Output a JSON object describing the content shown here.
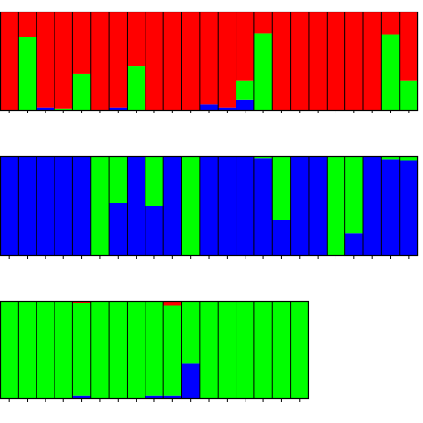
{
  "colors": {
    "red": "#ff0000",
    "green": "#00ff00",
    "blue": "#0000ff",
    "outline": "#000000"
  },
  "chart_data": [
    {
      "type": "bar",
      "stacked": true,
      "title": "",
      "xlabel": "",
      "ylabel": "",
      "ylim": [
        0,
        1
      ],
      "grid": false,
      "series_colors": [
        "#ff0000",
        "#00ff00",
        "#0000ff"
      ],
      "bars": [
        [
          1.0,
          0.0,
          0.0
        ],
        [
          0.26,
          0.74,
          0.0
        ],
        [
          0.97,
          0.0,
          0.03
        ],
        [
          0.98,
          0.02,
          0.0
        ],
        [
          0.63,
          0.37,
          0.0
        ],
        [
          1.0,
          0.0,
          0.0
        ],
        [
          0.97,
          0.0,
          0.03
        ],
        [
          0.55,
          0.45,
          0.0
        ],
        [
          1.0,
          0.0,
          0.0
        ],
        [
          1.0,
          0.0,
          0.0
        ],
        [
          1.0,
          0.0,
          0.0
        ],
        [
          0.94,
          0.0,
          0.06
        ],
        [
          0.97,
          0.0,
          0.03
        ],
        [
          0.7,
          0.19,
          0.11
        ],
        [
          0.22,
          0.78,
          0.0
        ],
        [
          1.0,
          0.0,
          0.0
        ],
        [
          1.0,
          0.0,
          0.0
        ],
        [
          1.0,
          0.0,
          0.0
        ],
        [
          1.0,
          0.0,
          0.0
        ],
        [
          1.0,
          0.0,
          0.0
        ],
        [
          1.0,
          0.0,
          0.0
        ],
        [
          0.23,
          0.77,
          0.0
        ],
        [
          0.7,
          0.3,
          0.0
        ]
      ]
    },
    {
      "type": "bar",
      "stacked": true,
      "title": "",
      "xlabel": "",
      "ylabel": "",
      "ylim": [
        0,
        1
      ],
      "grid": false,
      "series_colors": [
        "#ff0000",
        "#00ff00",
        "#0000ff"
      ],
      "bars": [
        [
          0.0,
          0.0,
          1.0
        ],
        [
          0.0,
          0.0,
          1.0
        ],
        [
          0.0,
          0.0,
          1.0
        ],
        [
          0.0,
          0.0,
          1.0
        ],
        [
          0.0,
          0.0,
          1.0
        ],
        [
          0.0,
          1.0,
          0.0
        ],
        [
          0.0,
          0.47,
          0.53
        ],
        [
          0.0,
          0.0,
          1.0
        ],
        [
          0.0,
          0.5,
          0.5
        ],
        [
          0.0,
          0.0,
          1.0
        ],
        [
          0.0,
          1.0,
          0.0
        ],
        [
          0.0,
          0.0,
          1.0
        ],
        [
          0.0,
          0.0,
          1.0
        ],
        [
          0.0,
          0.0,
          1.0
        ],
        [
          0.0,
          0.02,
          0.98
        ],
        [
          0.0,
          0.64,
          0.36
        ],
        [
          0.0,
          0.0,
          1.0
        ],
        [
          0.0,
          0.0,
          1.0
        ],
        [
          0.0,
          1.0,
          0.0
        ],
        [
          0.0,
          0.77,
          0.23
        ],
        [
          0.0,
          0.0,
          1.0
        ],
        [
          0.0,
          0.03,
          0.97
        ],
        [
          0.0,
          0.04,
          0.96
        ]
      ]
    },
    {
      "type": "bar",
      "stacked": true,
      "title": "",
      "xlabel": "",
      "ylabel": "",
      "ylim": [
        0,
        1
      ],
      "grid": false,
      "series_colors": [
        "#ff0000",
        "#00ff00",
        "#0000ff"
      ],
      "bars": [
        [
          0.0,
          1.0,
          0.0
        ],
        [
          0.0,
          1.0,
          0.0
        ],
        [
          0.0,
          1.0,
          0.0
        ],
        [
          0.0,
          1.0,
          0.0
        ],
        [
          0.02,
          0.95,
          0.03
        ],
        [
          0.0,
          1.0,
          0.0
        ],
        [
          0.0,
          1.0,
          0.0
        ],
        [
          0.0,
          1.0,
          0.0
        ],
        [
          0.0,
          0.97,
          0.03
        ],
        [
          0.05,
          0.92,
          0.03
        ],
        [
          0.0,
          0.64,
          0.36
        ],
        [
          0.0,
          1.0,
          0.0
        ],
        [
          0.0,
          1.0,
          0.0
        ],
        [
          0.0,
          1.0,
          0.0
        ],
        [
          0.0,
          1.0,
          0.0
        ],
        [
          0.0,
          1.0,
          0.0
        ],
        [
          0.0,
          1.0,
          0.0
        ]
      ]
    }
  ]
}
